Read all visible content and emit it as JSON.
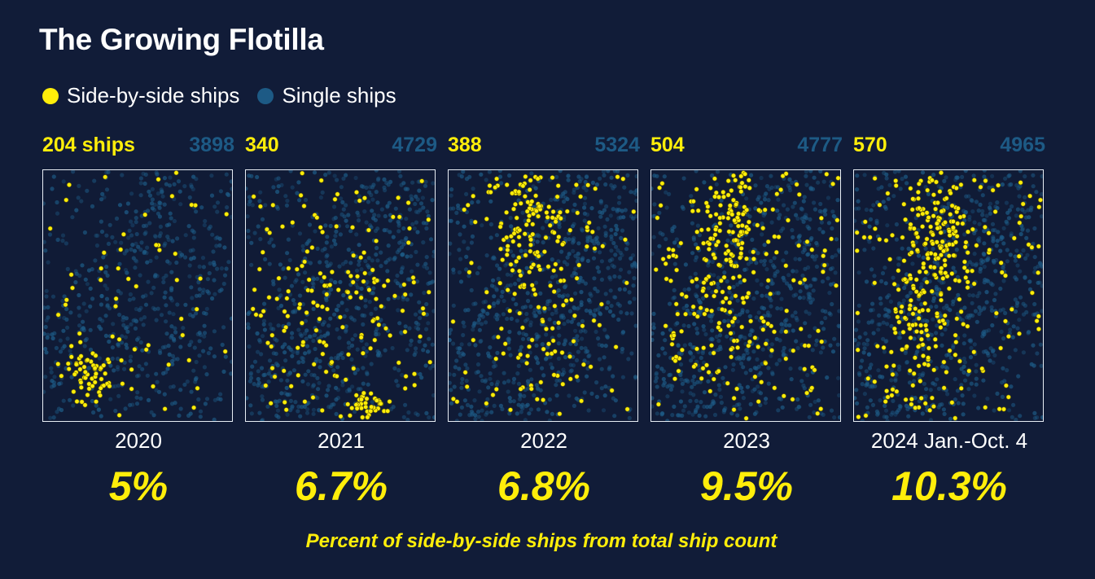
{
  "title": "The Growing Flotilla",
  "legend": [
    {
      "label": "Side-by-side ships",
      "color": "#ffee0a"
    },
    {
      "label": "Single ships",
      "color": "#1d5a85"
    }
  ],
  "footnote": "Percent of side-by-side ships from total ship count",
  "colors": {
    "background": "#111c38",
    "side_by_side": "#ffee0a",
    "single": "#1d5a85",
    "frame": "#e8eef5"
  },
  "chart_data": {
    "type": "scatter",
    "title": "The Growing Flotilla",
    "series": [
      {
        "name": "Side-by-side ships",
        "values": [
          204,
          340,
          388,
          504,
          570
        ]
      },
      {
        "name": "Single ships",
        "values": [
          3898,
          4729,
          5324,
          4777,
          4965
        ]
      }
    ],
    "categories": [
      "2020",
      "2021",
      "2022",
      "2023",
      "2024 Jan.-Oct. 4"
    ],
    "panels": [
      {
        "year": "2020",
        "side_label": "204 ships",
        "side_count": 204,
        "single_count": 3898,
        "single_label": "3898",
        "percent": "5%",
        "percent_value": 5.0
      },
      {
        "year": "2021",
        "side_label": "340",
        "side_count": 340,
        "single_count": 4729,
        "single_label": "4729",
        "percent": "6.7%",
        "percent_value": 6.7
      },
      {
        "year": "2022",
        "side_label": "388",
        "side_count": 388,
        "single_count": 5324,
        "single_label": "5324",
        "percent": "6.8%",
        "percent_value": 6.8
      },
      {
        "year": "2023",
        "side_label": "504",
        "side_count": 504,
        "single_count": 4777,
        "single_label": "4777",
        "percent": "9.5%",
        "percent_value": 9.5
      },
      {
        "year": "2024 Jan.-Oct. 4",
        "side_label": "570",
        "side_count": 570,
        "single_count": 4965,
        "single_label": "4965",
        "percent": "10.3%",
        "percent_value": 10.3
      }
    ],
    "legend_position": "top-left",
    "grid": false
  }
}
